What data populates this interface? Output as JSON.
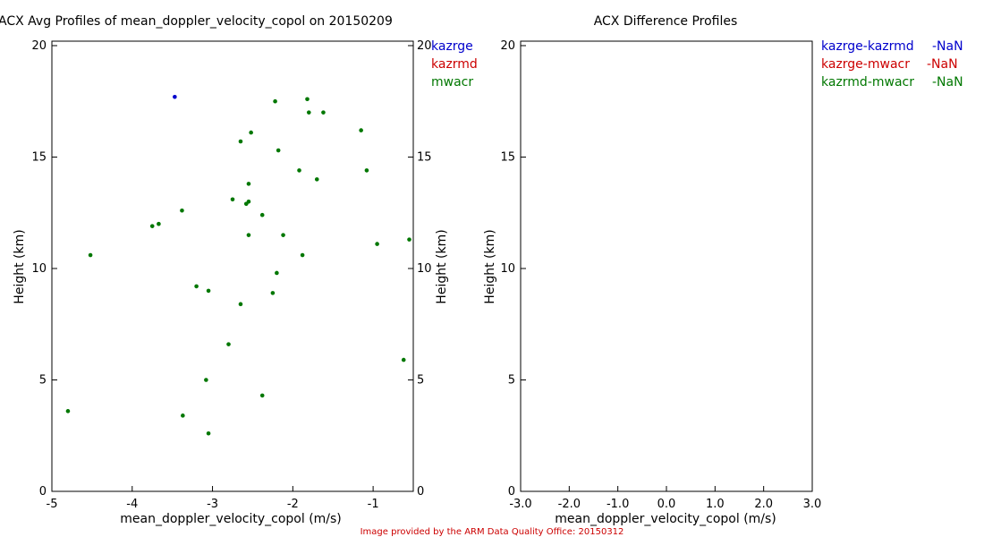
{
  "chart_data": [
    {
      "type": "scatter",
      "title": "ACX Avg Profiles of mean_doppler_velocity_copol on 20150209",
      "xlabel": "mean_doppler_velocity_copol (m/s)",
      "ylabel": "Height (km)",
      "xlim": [
        -5.0,
        -0.5
      ],
      "ylim": [
        0,
        20.2
      ],
      "xticks": [
        "-5",
        "-4",
        "-3",
        "-2",
        "-1"
      ],
      "xtick_values": [
        -5,
        -4,
        -3,
        -2,
        -1
      ],
      "yticks": [
        "0",
        "5",
        "10",
        "15",
        "20"
      ],
      "ytick_values": [
        0,
        5,
        10,
        15,
        20
      ],
      "legend": [
        "kazrge",
        "kazrmd",
        "mwacr"
      ],
      "legend_position": "top-right",
      "series": [
        {
          "name": "kazrge",
          "color": "#0000cc",
          "points": [
            [
              -3.47,
              17.7
            ]
          ]
        },
        {
          "name": "kazrmd",
          "color": "#cc0000",
          "points": []
        },
        {
          "name": "mwacr",
          "color": "#007700",
          "points": [
            [
              -4.8,
              3.6
            ],
            [
              -4.52,
              10.6
            ],
            [
              -3.37,
              3.4
            ],
            [
              -3.05,
              2.6
            ],
            [
              -3.08,
              5.0
            ],
            [
              -2.8,
              6.6
            ],
            [
              -2.65,
              8.4
            ],
            [
              -3.2,
              9.2
            ],
            [
              -3.05,
              9.0
            ],
            [
              -2.38,
              4.3
            ],
            [
              -2.25,
              8.9
            ],
            [
              -2.2,
              9.8
            ],
            [
              -1.88,
              10.6
            ],
            [
              -2.55,
              11.5
            ],
            [
              -2.12,
              11.5
            ],
            [
              -3.75,
              11.9
            ],
            [
              -3.67,
              12.0
            ],
            [
              -3.38,
              12.6
            ],
            [
              -2.38,
              12.4
            ],
            [
              -2.75,
              13.1
            ],
            [
              -2.58,
              12.9
            ],
            [
              -2.55,
              13.0
            ],
            [
              -2.55,
              13.8
            ],
            [
              -1.92,
              14.4
            ],
            [
              -1.7,
              14.0
            ],
            [
              -1.08,
              14.4
            ],
            [
              -2.65,
              15.7
            ],
            [
              -2.52,
              16.1
            ],
            [
              -2.18,
              15.3
            ],
            [
              -1.8,
              17.0
            ],
            [
              -1.82,
              17.6
            ],
            [
              -1.62,
              17.0
            ],
            [
              -2.22,
              17.5
            ],
            [
              -1.15,
              16.2
            ],
            [
              -0.95,
              11.1
            ],
            [
              -0.55,
              11.3
            ],
            [
              -0.62,
              5.9
            ]
          ]
        }
      ]
    },
    {
      "type": "line",
      "title": "ACX Difference Profiles",
      "xlabel": "mean_doppler_velocity_copol (m/s)",
      "ylabel": "Height (km)",
      "xlim": [
        -3.0,
        3.0
      ],
      "ylim": [
        0,
        20.2
      ],
      "xticks": [
        "-3.0",
        "-2.0",
        "-1.0",
        "0.0",
        "1.0",
        "2.0",
        "3.0"
      ],
      "xtick_values": [
        -3,
        -2,
        -1,
        0,
        1,
        2,
        3
      ],
      "yticks": [
        "0",
        "5",
        "10",
        "15",
        "20"
      ],
      "ytick_values": [
        0,
        5,
        10,
        15,
        20
      ],
      "legend_position": "top-right",
      "series": [
        {
          "name": "kazrge-kazrmd",
          "value": "-NaN",
          "color": "#0000cc",
          "points": []
        },
        {
          "name": "kazrge-mwacr",
          "value": "-NaN",
          "color": "#cc0000",
          "points": []
        },
        {
          "name": "kazrmd-mwacr",
          "value": "-NaN",
          "color": "#007700",
          "points": []
        }
      ]
    }
  ],
  "footer": {
    "credit": "Image provided by the ARM Data Quality Office: 20150312"
  }
}
